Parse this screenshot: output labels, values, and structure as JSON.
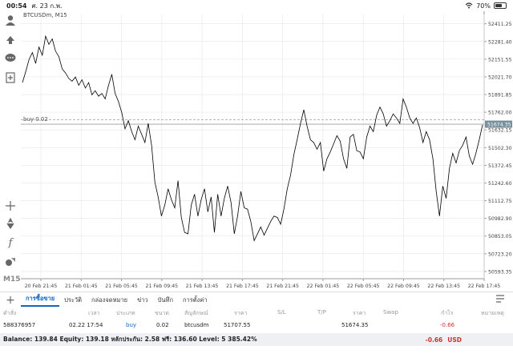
{
  "status_bar": {
    "time": "00:54",
    "date": "ศ. 23 ก.พ.",
    "wifi_icon": "wifi-icon",
    "battery": "70%",
    "battery_level": 0.7
  },
  "toolbar": {
    "icons": [
      "account-icon",
      "trade-icon",
      "chat-icon",
      "add-chart-icon",
      "crosshair-icon",
      "objects-icon",
      "indicator-icon",
      "shapes-icon"
    ],
    "timeframe": "M15"
  },
  "chart": {
    "symbol_label": "BTCUSDm, M15",
    "buy_line_label": "buy 0.02",
    "current_price_label": "51674.35",
    "colors": {
      "line": "#000000",
      "grid": "#e6e6e6",
      "buy_line": "#90a4ae",
      "price_tag": "#78909c"
    }
  },
  "chart_data": {
    "type": "line",
    "y_ticks": [
      "52411.25",
      "52281.40",
      "52151.55",
      "52021.70",
      "51891.85",
      "51762.00",
      "51632.15",
      "51502.30",
      "51372.45",
      "51242.60",
      "51112.75",
      "50982.90",
      "50853.05",
      "50723.20",
      "50593.35"
    ],
    "x_ticks": [
      "20 Feb 21:45",
      "21 Feb 01:45",
      "21 Feb 05:45",
      "21 Feb 09:45",
      "21 Feb 13:45",
      "21 Feb 17:45",
      "21 Feb 21:45",
      "22 Feb 01:45",
      "22 Feb 05:45",
      "22 Feb 09:45",
      "22 Feb 13:45",
      "22 Feb 17:45"
    ],
    "ylim": [
      50540,
      52480
    ],
    "current_price": 51674.35,
    "buy_price": 51707.55,
    "values": [
      51980,
      52060,
      52150,
      52200,
      52120,
      52240,
      52180,
      52320,
      52260,
      52300,
      52210,
      52170,
      52080,
      52050,
      52010,
      51990,
      52020,
      51960,
      52000,
      51940,
      51980,
      51890,
      51920,
      51880,
      51900,
      51860,
      51960,
      52040,
      51900,
      51840,
      51760,
      51640,
      51700,
      51620,
      51560,
      51660,
      51600,
      51540,
      51680,
      51520,
      51250,
      51140,
      51000,
      51080,
      51200,
      51120,
      51060,
      51260,
      50990,
      50880,
      50870,
      51080,
      51160,
      51000,
      51120,
      51200,
      51030,
      51140,
      50880,
      51160,
      51000,
      51130,
      51220,
      51100,
      50870,
      51000,
      51180,
      51060,
      51050,
      50960,
      50820,
      50870,
      50920,
      50860,
      50910,
      50960,
      51000,
      50990,
      50940,
      51050,
      51200,
      51300,
      51450,
      51560,
      51680,
      51780,
      51660,
      51560,
      51540,
      51490,
      51540,
      51330,
      51420,
      51470,
      51530,
      51590,
      51550,
      51420,
      51350,
      51580,
      51600,
      51480,
      51470,
      51420,
      51580,
      51660,
      51620,
      51740,
      51800,
      51750,
      51660,
      51700,
      51750,
      51720,
      51680,
      51860,
      51800,
      51720,
      51680,
      51720,
      51650,
      51540,
      51620,
      51560,
      51420,
      51180,
      51000,
      51220,
      51130,
      51350,
      51460,
      51390,
      51480,
      51520,
      51580,
      51440,
      51380,
      51460,
      51560,
      51670
    ]
  },
  "bottom": {
    "tabs": [
      "การซื้อขาย",
      "ประวัติ",
      "กล่องจดหมาย",
      "ข่าว",
      "บันทึก",
      "การตั้งค่า"
    ],
    "columns": [
      "คำสั่ง",
      "เวลา",
      "ประเภท",
      "ขนาด",
      "สัญลักษณ์",
      "ราคา",
      "S/L",
      "T/P",
      "ราคา",
      "Swap",
      "กำไร",
      "หมายเหตุ"
    ],
    "row": {
      "order": "588376957",
      "time": "02.22 17:54",
      "type": "buy",
      "size": "0.02",
      "symbol": "btcusdm",
      "price": "51707.55",
      "sl": "",
      "tp": "",
      "cur_price": "51674.35",
      "swap": "",
      "profit": "-0.66",
      "comment": ""
    },
    "balance_text": "Balance: 139.84  Equity: 139.18  หลักประกัน: 2.58  ฟรี: 136.60  Level: 5 385.42%",
    "total_profit": "-0.66",
    "currency": "USD"
  }
}
